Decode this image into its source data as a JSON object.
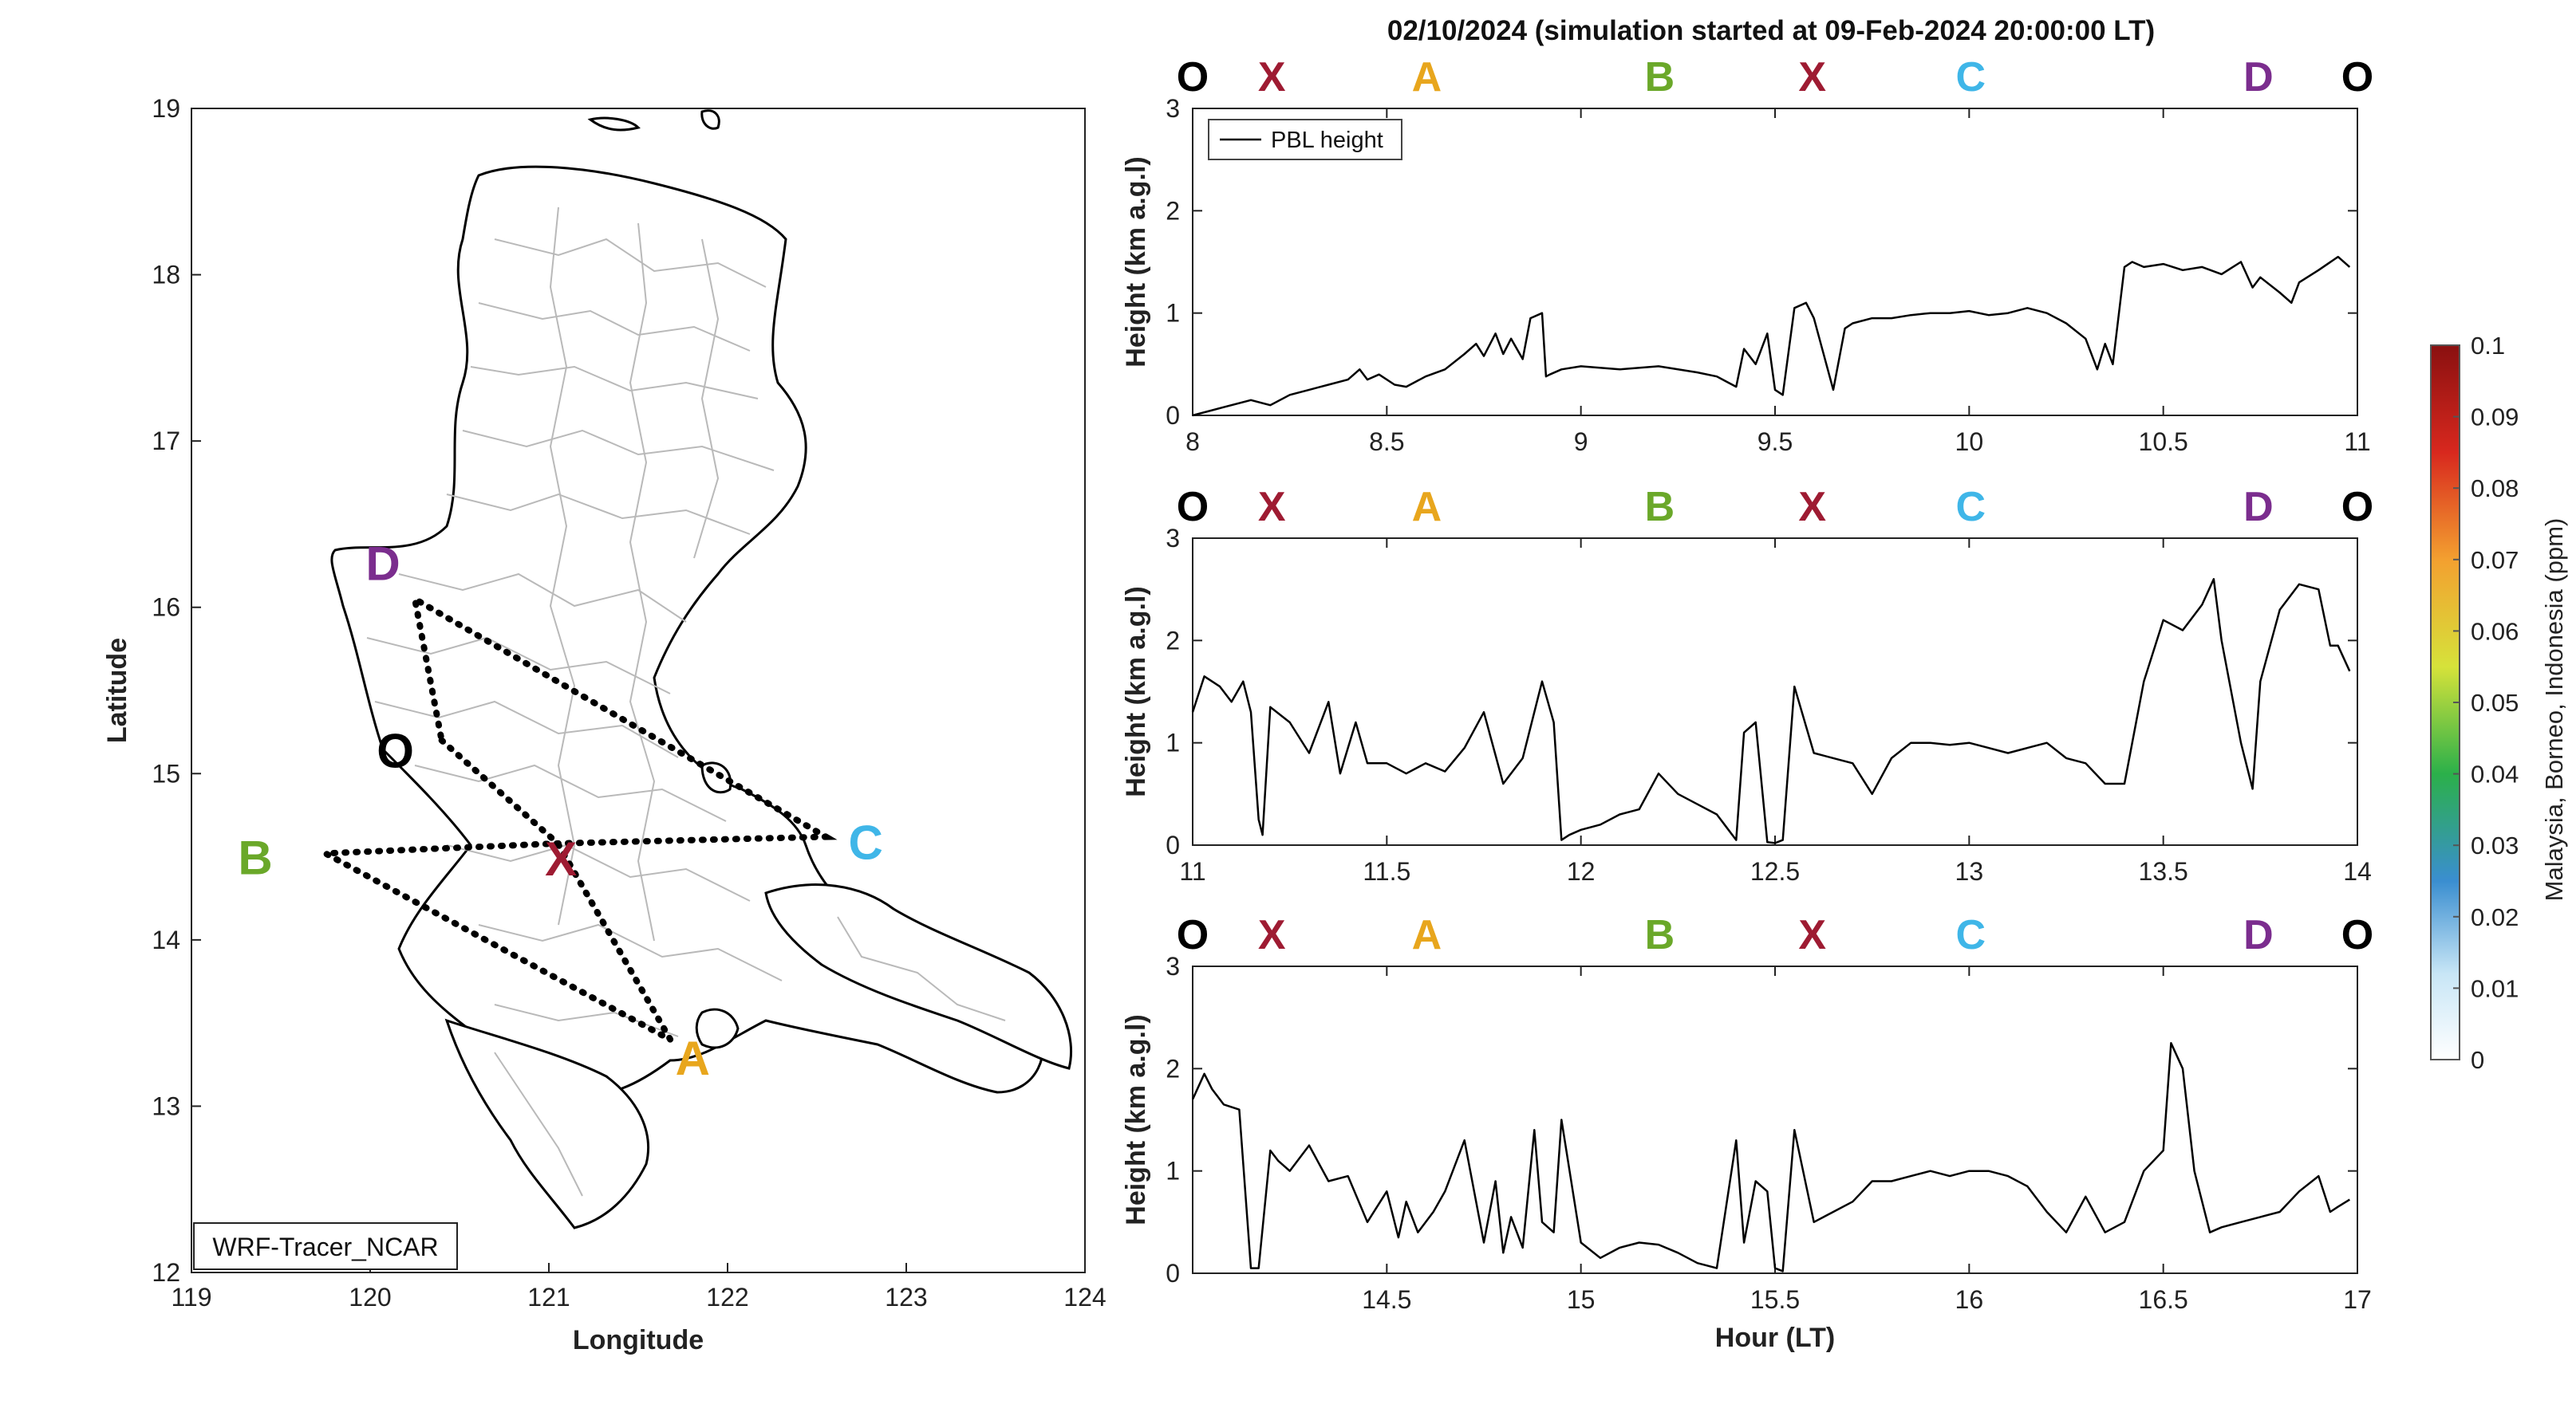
{
  "title": "02/10/2024 (simulation started at 09-Feb-2024 20:00:00 LT)",
  "map": {
    "xlabel": "Longitude",
    "ylabel": "Latitude",
    "xlim": [
      119,
      124
    ],
    "ylim": [
      12,
      19
    ],
    "xticks": [
      "119",
      "120",
      "121",
      "122",
      "123",
      "124"
    ],
    "yticks": [
      "12",
      "13",
      "14",
      "15",
      "16",
      "17",
      "18",
      "19"
    ],
    "badge": "WRF-Tracer_NCAR",
    "points": [
      {
        "label": "D",
        "lon": 120.25,
        "lat": 16.05,
        "color": "#7b2d8e"
      },
      {
        "label": "O",
        "lon": 120.4,
        "lat": 15.2,
        "color": "#000000"
      },
      {
        "label": "X",
        "lon": 121.05,
        "lat": 14.58,
        "color": "#9e1b32"
      },
      {
        "label": "B",
        "lon": 119.75,
        "lat": 14.52,
        "color": "#6aa829"
      },
      {
        "label": "C",
        "lon": 122.55,
        "lat": 14.62,
        "color": "#3fb6e8"
      },
      {
        "label": "A",
        "lon": 121.68,
        "lat": 13.4,
        "color": "#e8a61d"
      }
    ],
    "route": [
      "O",
      "X",
      "A",
      "B",
      "X",
      "C",
      "D",
      "O"
    ]
  },
  "panel_markers": [
    {
      "label": "O",
      "color": "#000000"
    },
    {
      "label": "X",
      "color": "#9e1b32"
    },
    {
      "label": "A",
      "color": "#e8a61d"
    },
    {
      "label": "B",
      "color": "#6aa829"
    },
    {
      "label": "X",
      "color": "#9e1b32"
    },
    {
      "label": "C",
      "color": "#3fb6e8"
    },
    {
      "label": "D",
      "color": "#7b2d8e"
    },
    {
      "label": "O",
      "color": "#000000"
    }
  ],
  "colorbar": {
    "label": "Malaysia, Borneo, Indonesia (ppm)",
    "ticks": [
      "0",
      "0.01",
      "0.02",
      "0.03",
      "0.04",
      "0.05",
      "0.06",
      "0.07",
      "0.08",
      "0.09",
      "0.1"
    ],
    "range": [
      0,
      0.1
    ],
    "colors": [
      "#ffffff",
      "#a9d8f0",
      "#3a8ed0",
      "#2bb04a",
      "#d6e23a",
      "#f3a030",
      "#d8281e",
      "#8a1010"
    ]
  },
  "chart_data": [
    {
      "type": "line",
      "ylabel": "Height (km a.g.l)",
      "xlabel": "",
      "xlim": [
        8,
        11
      ],
      "ylim": [
        0,
        3
      ],
      "xticks": [
        "8",
        "8.5",
        "9",
        "9.5",
        "10",
        "10.5",
        "11"
      ],
      "yticks": [
        "0",
        "1",
        "2",
        "3"
      ],
      "legend": "PBL height",
      "series": [
        {
          "name": "PBL height",
          "x": [
            8.0,
            8.08,
            8.15,
            8.2,
            8.25,
            8.3,
            8.35,
            8.4,
            8.43,
            8.45,
            8.48,
            8.52,
            8.55,
            8.6,
            8.65,
            8.7,
            8.73,
            8.75,
            8.78,
            8.8,
            8.82,
            8.85,
            8.87,
            8.9,
            8.91,
            8.92,
            8.95,
            9.0,
            9.1,
            9.2,
            9.3,
            9.35,
            9.4,
            9.42,
            9.45,
            9.48,
            9.5,
            9.52,
            9.55,
            9.58,
            9.6,
            9.65,
            9.68,
            9.7,
            9.75,
            9.8,
            9.85,
            9.9,
            9.95,
            10.0,
            10.05,
            10.1,
            10.15,
            10.2,
            10.25,
            10.3,
            10.33,
            10.35,
            10.37,
            10.4,
            10.42,
            10.45,
            10.5,
            10.55,
            10.6,
            10.65,
            10.7,
            10.73,
            10.75,
            10.8,
            10.83,
            10.85,
            10.9,
            10.95,
            10.98
          ],
          "y": [
            0.0,
            0.08,
            0.15,
            0.1,
            0.2,
            0.25,
            0.3,
            0.35,
            0.45,
            0.35,
            0.4,
            0.3,
            0.28,
            0.38,
            0.45,
            0.6,
            0.7,
            0.58,
            0.8,
            0.6,
            0.75,
            0.55,
            0.95,
            1.0,
            0.38,
            0.4,
            0.45,
            0.48,
            0.45,
            0.48,
            0.42,
            0.38,
            0.28,
            0.65,
            0.5,
            0.8,
            0.25,
            0.2,
            1.05,
            1.1,
            0.95,
            0.25,
            0.85,
            0.9,
            0.95,
            0.95,
            0.98,
            1.0,
            1.0,
            1.02,
            0.98,
            1.0,
            1.05,
            1.0,
            0.9,
            0.75,
            0.45,
            0.7,
            0.5,
            1.45,
            1.5,
            1.45,
            1.48,
            1.42,
            1.45,
            1.38,
            1.5,
            1.25,
            1.35,
            1.2,
            1.1,
            1.3,
            1.42,
            1.55,
            1.45
          ]
        }
      ]
    },
    {
      "type": "line",
      "ylabel": "Height (km a.g.l)",
      "xlabel": "",
      "xlim": [
        11,
        14
      ],
      "ylim": [
        0,
        3
      ],
      "xticks": [
        "11",
        "11.5",
        "12",
        "12.5",
        "13",
        "13.5",
        "14"
      ],
      "yticks": [
        "0",
        "1",
        "2",
        "3"
      ],
      "series": [
        {
          "name": "PBL height",
          "x": [
            11.0,
            11.03,
            11.07,
            11.1,
            11.13,
            11.15,
            11.17,
            11.18,
            11.2,
            11.25,
            11.3,
            11.35,
            11.38,
            11.42,
            11.45,
            11.5,
            11.55,
            11.6,
            11.65,
            11.7,
            11.75,
            11.8,
            11.85,
            11.9,
            11.93,
            11.95,
            11.97,
            12.0,
            12.05,
            12.1,
            12.15,
            12.2,
            12.25,
            12.3,
            12.35,
            12.4,
            12.42,
            12.45,
            12.48,
            12.5,
            12.52,
            12.55,
            12.6,
            12.65,
            12.7,
            12.75,
            12.8,
            12.85,
            12.9,
            12.95,
            13.0,
            13.05,
            13.1,
            13.15,
            13.2,
            13.25,
            13.3,
            13.35,
            13.4,
            13.45,
            13.5,
            13.55,
            13.6,
            13.63,
            13.65,
            13.7,
            13.73,
            13.75,
            13.8,
            13.85,
            13.9,
            13.93,
            13.95,
            13.98
          ],
          "y": [
            1.3,
            1.65,
            1.55,
            1.4,
            1.6,
            1.3,
            0.25,
            0.1,
            1.35,
            1.2,
            0.9,
            1.4,
            0.7,
            1.2,
            0.8,
            0.8,
            0.7,
            0.8,
            0.72,
            0.95,
            1.3,
            0.6,
            0.85,
            1.6,
            1.2,
            0.05,
            0.1,
            0.15,
            0.2,
            0.3,
            0.35,
            0.7,
            0.5,
            0.4,
            0.3,
            0.05,
            1.1,
            1.2,
            0.03,
            0.02,
            0.05,
            1.55,
            0.9,
            0.85,
            0.8,
            0.5,
            0.85,
            1.0,
            1.0,
            0.98,
            1.0,
            0.95,
            0.9,
            0.95,
            1.0,
            0.85,
            0.8,
            0.6,
            0.6,
            1.6,
            2.2,
            2.1,
            2.35,
            2.6,
            2.0,
            1.0,
            0.55,
            1.6,
            2.3,
            2.55,
            2.5,
            1.95,
            1.95,
            1.7
          ]
        }
      ]
    },
    {
      "type": "line",
      "ylabel": "Height (km a.g.l)",
      "xlabel": "Hour (LT)",
      "xlim": [
        14,
        17
      ],
      "ylim": [
        0,
        3
      ],
      "xticks": [
        "14.5",
        "15",
        "15.5",
        "16",
        "16.5",
        "17"
      ],
      "yticks": [
        "0",
        "1",
        "2",
        "3"
      ],
      "series": [
        {
          "name": "PBL height",
          "x": [
            14.0,
            14.03,
            14.05,
            14.08,
            14.12,
            14.15,
            14.17,
            14.2,
            14.22,
            14.25,
            14.3,
            14.35,
            14.4,
            14.45,
            14.5,
            14.53,
            14.55,
            14.58,
            14.62,
            14.65,
            14.7,
            14.75,
            14.78,
            14.8,
            14.82,
            14.85,
            14.88,
            14.9,
            14.93,
            14.95,
            15.0,
            15.05,
            15.1,
            15.15,
            15.2,
            15.25,
            15.3,
            15.35,
            15.4,
            15.42,
            15.45,
            15.48,
            15.5,
            15.52,
            15.55,
            15.6,
            15.65,
            15.7,
            15.75,
            15.8,
            15.85,
            15.9,
            15.95,
            16.0,
            16.05,
            16.1,
            16.15,
            16.2,
            16.25,
            16.3,
            16.35,
            16.4,
            16.45,
            16.5,
            16.52,
            16.55,
            16.58,
            16.62,
            16.65,
            16.7,
            16.75,
            16.8,
            16.85,
            16.9,
            16.93,
            16.95,
            16.98
          ],
          "y": [
            1.7,
            1.95,
            1.8,
            1.65,
            1.6,
            0.05,
            0.05,
            1.2,
            1.1,
            1.0,
            1.25,
            0.9,
            0.95,
            0.5,
            0.8,
            0.35,
            0.7,
            0.4,
            0.6,
            0.8,
            1.3,
            0.3,
            0.9,
            0.2,
            0.55,
            0.25,
            1.4,
            0.5,
            0.4,
            1.5,
            0.3,
            0.15,
            0.25,
            0.3,
            0.28,
            0.2,
            0.1,
            0.05,
            1.3,
            0.3,
            0.9,
            0.8,
            0.05,
            0.02,
            1.4,
            0.5,
            0.6,
            0.7,
            0.9,
            0.9,
            0.95,
            1.0,
            0.95,
            1.0,
            1.0,
            0.95,
            0.85,
            0.6,
            0.4,
            0.75,
            0.4,
            0.5,
            1.0,
            1.2,
            2.25,
            2.0,
            1.0,
            0.4,
            0.45,
            0.5,
            0.55,
            0.6,
            0.8,
            0.95,
            0.6,
            0.65,
            0.72
          ]
        }
      ]
    }
  ]
}
